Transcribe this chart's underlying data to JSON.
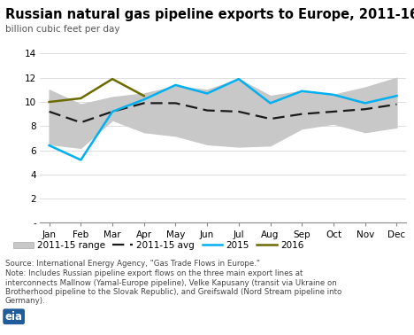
{
  "title": "Russian natural gas pipeline exports to Europe, 2011-16",
  "ylabel": "billion cubic feet per day",
  "months": [
    "Jan",
    "Feb",
    "Mar",
    "Apr",
    "May",
    "Jun",
    "Jul",
    "Aug",
    "Sep",
    "Oct",
    "Nov",
    "Dec"
  ],
  "range_low": [
    6.5,
    6.2,
    8.5,
    7.5,
    7.2,
    6.5,
    6.3,
    6.4,
    7.8,
    8.2,
    7.5,
    7.9
  ],
  "range_high": [
    11.0,
    9.8,
    10.4,
    10.7,
    11.3,
    11.0,
    11.9,
    10.5,
    10.9,
    10.6,
    11.2,
    12.0
  ],
  "avg_2011_15": [
    9.2,
    8.3,
    9.2,
    9.9,
    9.9,
    9.3,
    9.2,
    8.6,
    9.0,
    9.2,
    9.4,
    9.8
  ],
  "line_2015": [
    6.4,
    5.2,
    9.2,
    10.2,
    11.4,
    10.7,
    11.9,
    9.9,
    10.9,
    10.6,
    9.9,
    10.5
  ],
  "line_2016": [
    10.0,
    10.3,
    11.9,
    10.5,
    null,
    null,
    null,
    null,
    null,
    null,
    null,
    null
  ],
  "range_color": "#c8c8c8",
  "avg_color": "#1a1a1a",
  "color_2015": "#00b0f0",
  "color_2016": "#6b6b00",
  "ylim": [
    0,
    14
  ],
  "yticks": [
    0,
    2,
    4,
    6,
    8,
    10,
    12,
    14
  ],
  "ytick_labels": [
    "-",
    "2",
    "4",
    "6",
    "8",
    "10",
    "12",
    "14"
  ],
  "source_text": "Source: International Energy Agency, \"Gas Trade Flows in Europe.\"",
  "note_text": "Note: Includes Russian pipeline export flows on the three main export lines at\ninterconnects Mallnow (Yamal-Europe pipeline), Velke Kapusany (transit via Ukraine on\nBrotherhood pipeline to the Slovak Republic), and Greifswald (Nord Stream pipeline into\nGermany)."
}
